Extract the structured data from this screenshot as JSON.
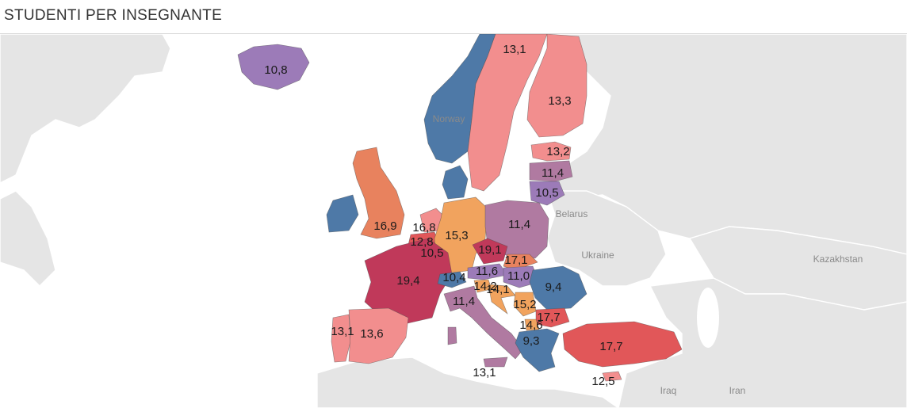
{
  "title": "STUDENTI PER INSEGNANTE",
  "colors": {
    "sea": "#ffffff",
    "land": "#e5e5e5",
    "blue": "#4e79a7",
    "purple": "#b07aa1",
    "violet": "#9c7bb8",
    "pink": "#f28e8e",
    "salmon": "#e8825e",
    "orange": "#f1a35e",
    "coral": "#e15759",
    "red": "#c0395a"
  },
  "geo_labels": {
    "norway": "Norway",
    "belarus": "Belarus",
    "ukraine": "Ukraine",
    "kazakhstan": "Kazakhstan",
    "iraq": "Iraq",
    "iran": "Iran"
  },
  "chart_data": {
    "type": "map",
    "title": "STUDENTI PER INSEGNANTE",
    "values": [
      {
        "key": "iceland",
        "value": "10,8"
      },
      {
        "key": "norway_north",
        "value": "13,1"
      },
      {
        "key": "finland",
        "value": "13,3"
      },
      {
        "key": "estonia",
        "value": "13,2"
      },
      {
        "key": "latvia",
        "value": "11,4"
      },
      {
        "key": "lithuania",
        "value": "10,5"
      },
      {
        "key": "poland",
        "value": "11,4"
      },
      {
        "key": "uk",
        "value": "16,9"
      },
      {
        "key": "netherlands",
        "value": "16,8"
      },
      {
        "key": "belgium",
        "value": "12,8"
      },
      {
        "key": "luxembourg",
        "value": "10,5"
      },
      {
        "key": "germany",
        "value": "15,3"
      },
      {
        "key": "czechia",
        "value": "19,1"
      },
      {
        "key": "slovakia",
        "value": "17,1"
      },
      {
        "key": "france",
        "value": "19,4"
      },
      {
        "key": "switzerland",
        "value": "10,4"
      },
      {
        "key": "austria",
        "value": "11,6"
      },
      {
        "key": "hungary",
        "value": "11,0"
      },
      {
        "key": "slovenia",
        "value": "14,2"
      },
      {
        "key": "croatia",
        "value": "14,1"
      },
      {
        "key": "romania",
        "value": "9,4"
      },
      {
        "key": "italy",
        "value": "11,4"
      },
      {
        "key": "serbia",
        "value": "15,2"
      },
      {
        "key": "bulgaria",
        "value": "17,7"
      },
      {
        "key": "north_macedonia",
        "value": "14,6"
      },
      {
        "key": "greece",
        "value": "9,3"
      },
      {
        "key": "turkey",
        "value": "17,7"
      },
      {
        "key": "portugal",
        "value": "13,1"
      },
      {
        "key": "spain",
        "value": "13,6"
      },
      {
        "key": "malta",
        "value": "13,1"
      },
      {
        "key": "cyprus",
        "value": "12,5"
      }
    ]
  }
}
